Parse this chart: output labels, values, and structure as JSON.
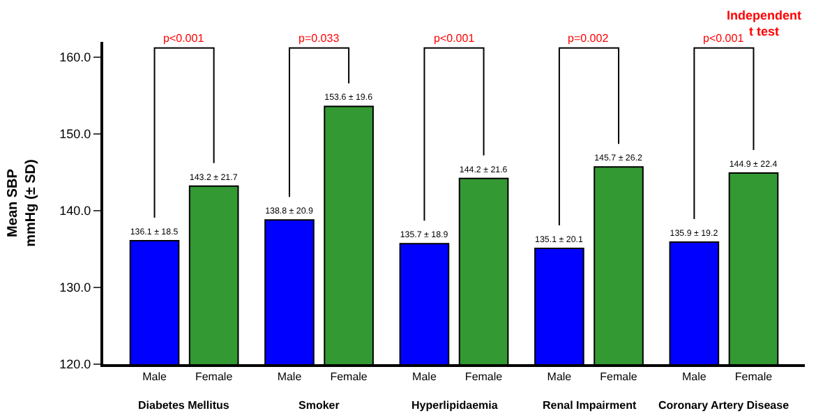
{
  "chart_data": {
    "type": "bar",
    "ylabel": "Mean SBP\nmmHg (± SD)",
    "categories": [
      "Diabetes Mellitus",
      "Smoker",
      "Hyperlipidaemia",
      "Renal Impairment",
      "Coronary Artery Disease"
    ],
    "series": [
      {
        "name": "Male",
        "color": "#0000ff",
        "values": [
          136.1,
          138.8,
          135.7,
          135.1,
          135.9
        ],
        "value_labels": [
          "136.1 ± 18.5",
          "138.8 ± 20.9",
          "135.7 ± 18.9",
          "135.1 ± 20.1",
          "135.9 ± 19.2"
        ]
      },
      {
        "name": "Female",
        "color": "#339933",
        "values": [
          143.2,
          153.6,
          144.2,
          145.7,
          144.9
        ],
        "value_labels": [
          "143.2 ± 21.7",
          "153.6 ± 19.6",
          "144.2 ± 21.6",
          "145.7 ± 26.2",
          "144.9 ± 22.4"
        ]
      }
    ],
    "ylim": [
      120,
      162
    ],
    "yticks": [
      {
        "value": 120,
        "label": "120.0"
      },
      {
        "value": 130,
        "label": "130.0"
      },
      {
        "value": 140,
        "label": "140.0"
      },
      {
        "value": 150,
        "label": "150.0"
      },
      {
        "value": 160,
        "label": "160.0"
      }
    ],
    "annotations": [
      "p<0.001",
      "p=0.033",
      "p<0.001",
      "p=0.002",
      "p<0.001",
      "Independent\nt test"
    ],
    "legend": false
  }
}
